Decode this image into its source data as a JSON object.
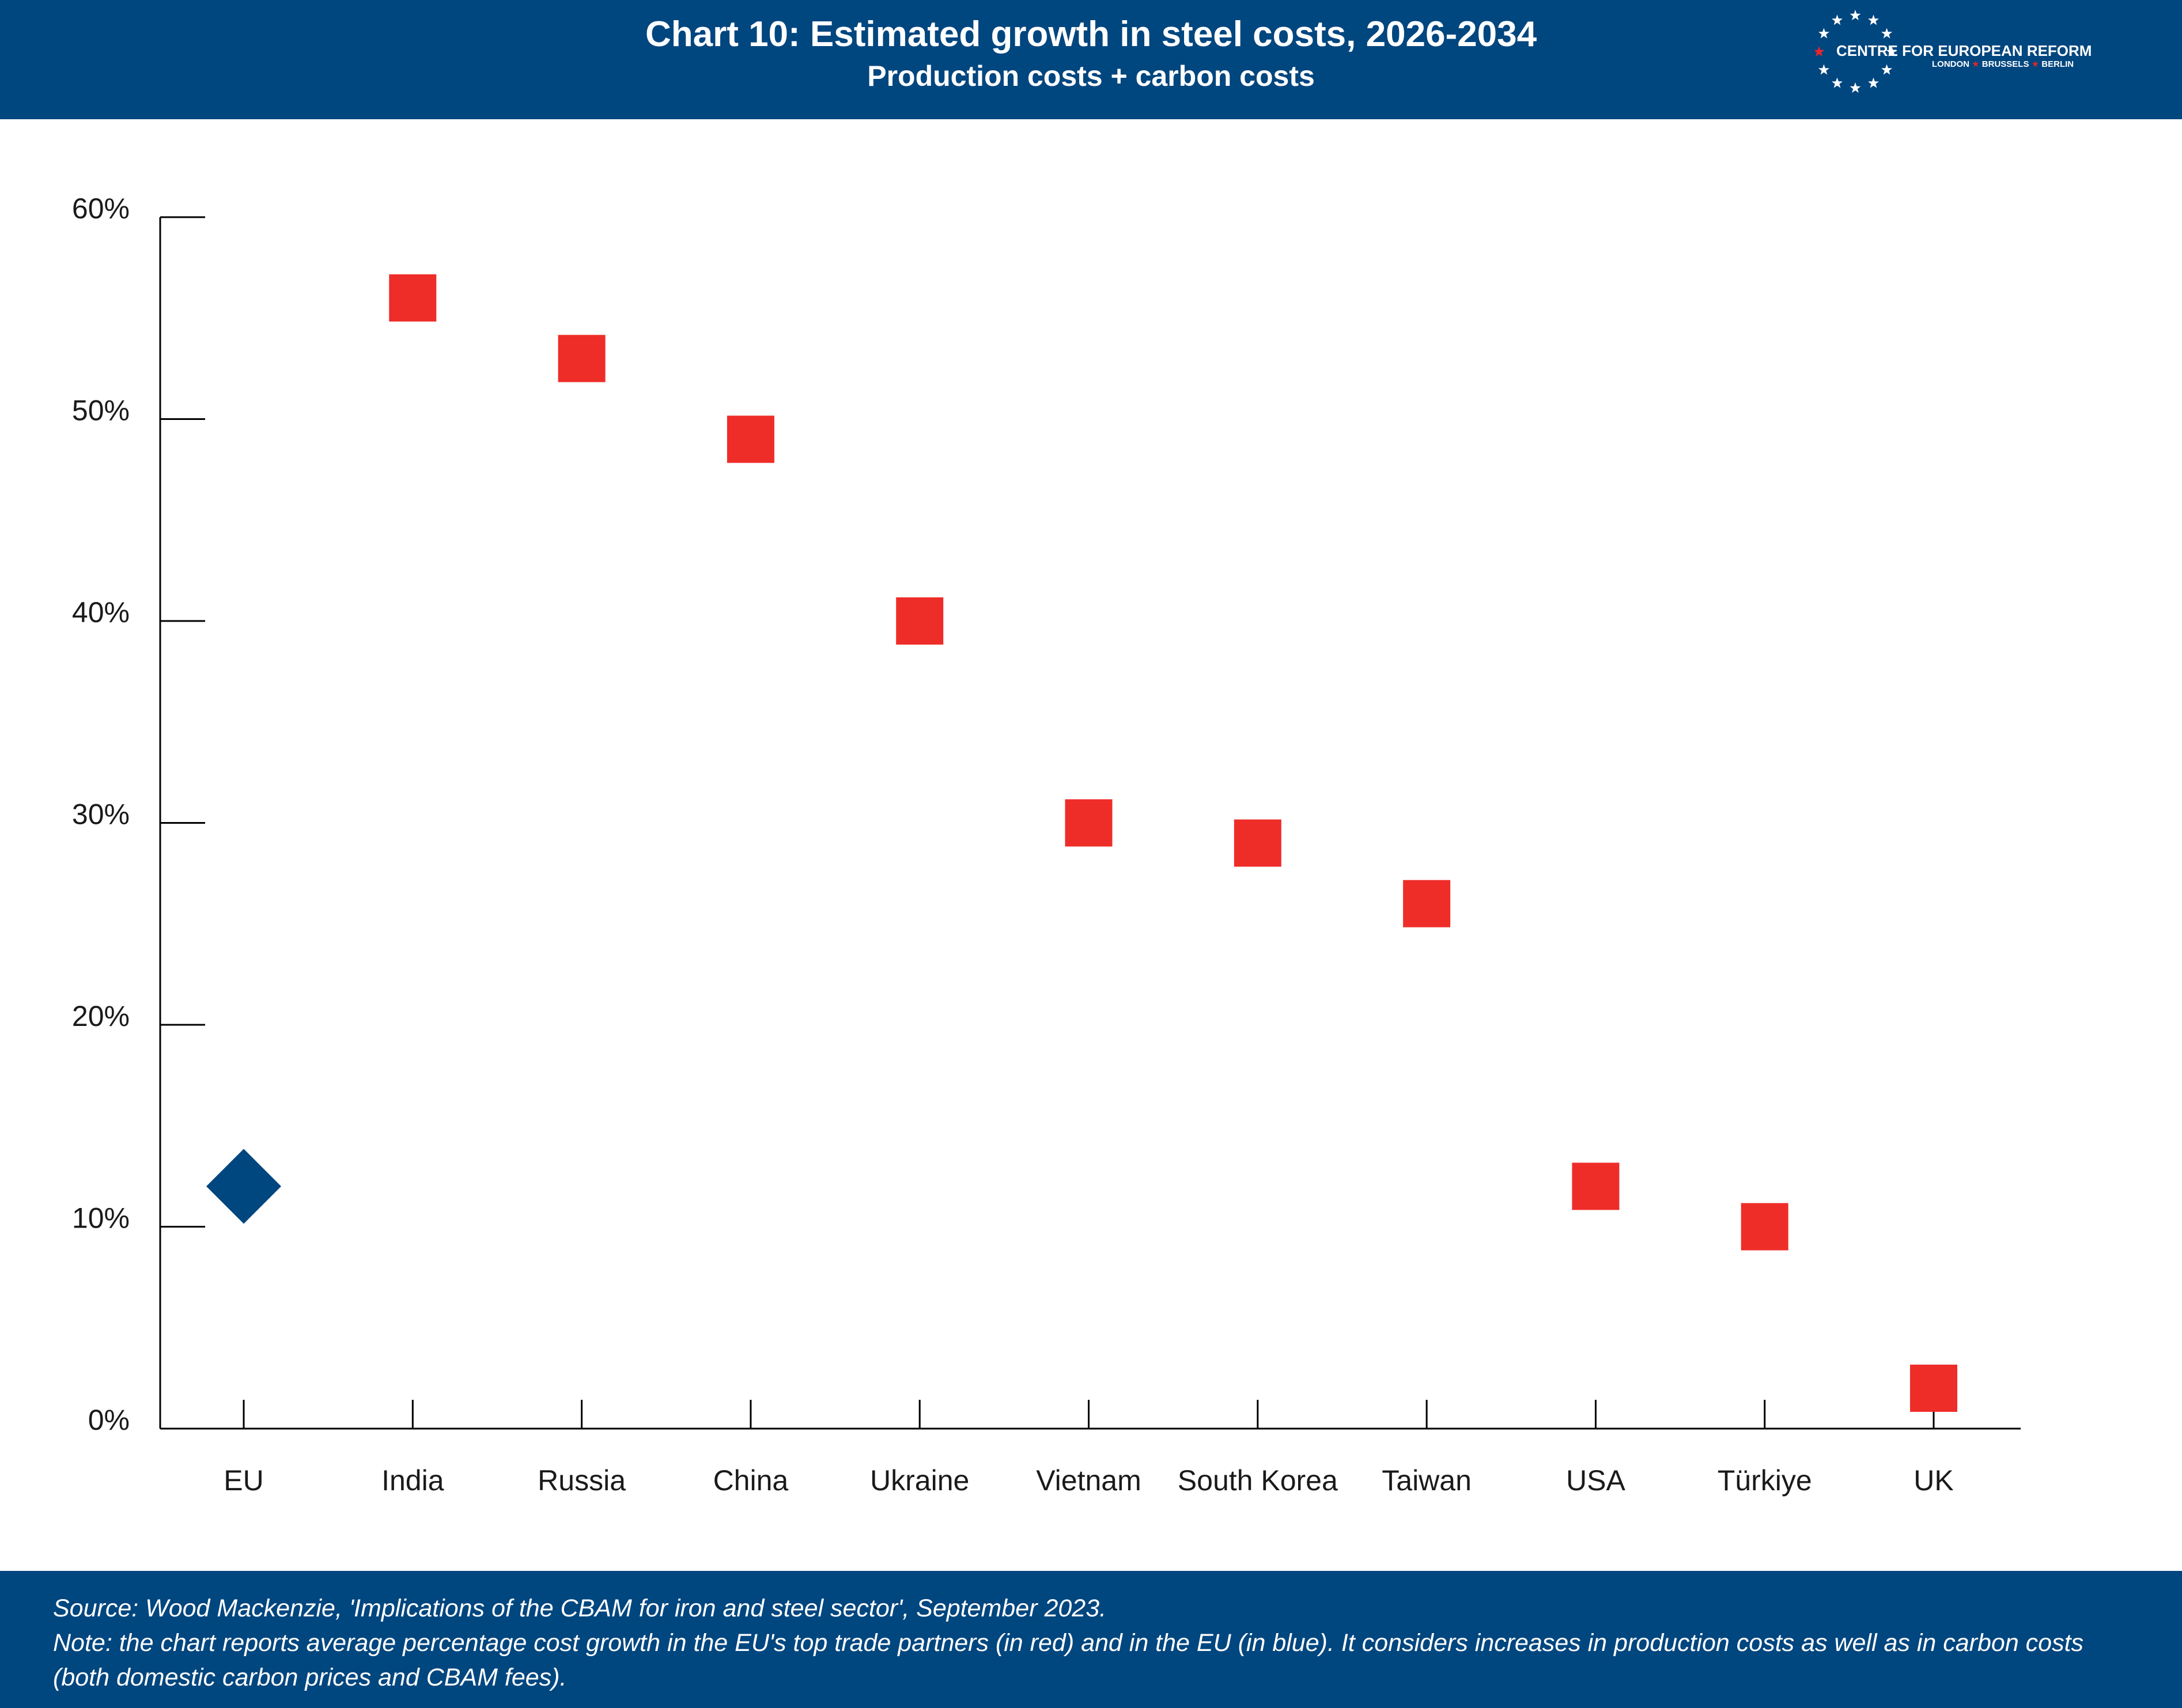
{
  "header": {
    "title": "Chart 10: Estimated growth in steel costs, 2026-2034",
    "subtitle": "Production costs + carbon costs",
    "logo": {
      "name": "CENTRE FOR EUROPEAN REFORM",
      "cities": [
        "LONDON",
        "BRUSSELS",
        "BERLIN"
      ],
      "icon": "ring-of-stars-icon"
    }
  },
  "chart_data": {
    "type": "scatter",
    "categories": [
      "EU",
      "India",
      "Russia",
      "China",
      "Ukraine",
      "Vietnam",
      "South Korea",
      "Taiwan",
      "USA",
      "Türkiye",
      "UK"
    ],
    "values": [
      12,
      56,
      53,
      49,
      40,
      30,
      29,
      26,
      12,
      10,
      2
    ],
    "markers": [
      "diamond",
      "square",
      "square",
      "square",
      "square",
      "square",
      "square",
      "square",
      "square",
      "square",
      "square"
    ],
    "marker_colors": [
      "#00467f",
      "#ee2d29",
      "#ee2d29",
      "#ee2d29",
      "#ee2d29",
      "#ee2d29",
      "#ee2d29",
      "#ee2d29",
      "#ee2d29",
      "#ee2d29",
      "#ee2d29"
    ],
    "yticks": [
      0,
      10,
      20,
      30,
      40,
      50,
      60
    ],
    "ytick_labels": [
      "0%",
      "10%",
      "20%",
      "30%",
      "40%",
      "50%",
      "60%"
    ],
    "ylim": [
      0,
      60
    ],
    "grid": false,
    "legend": "none"
  },
  "footer": {
    "source": "Source: Wood Mackenzie, 'Implications of the CBAM for iron and steel sector', September 2023.",
    "note_line1": "Note: the chart reports average percentage cost growth in the EU's top trade partners (in red) and in the EU (in blue). It considers increases in production costs as well as in carbon costs",
    "note_line2": "(both domestic carbon prices and CBAM fees)."
  }
}
